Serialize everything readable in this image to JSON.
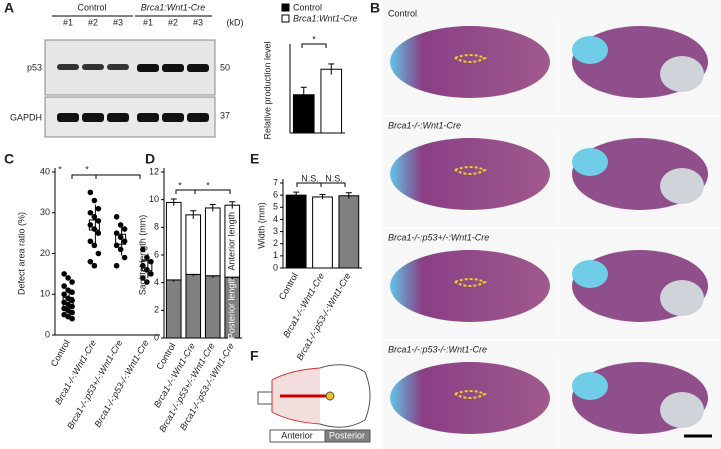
{
  "blot": {
    "panel": "A",
    "groups": [
      "Control",
      "Brca1:Wnt1-Cre"
    ],
    "lanes": [
      "#1",
      "#2",
      "#3",
      "#1",
      "#2",
      "#3"
    ],
    "unit": "(kD)",
    "rows": [
      {
        "label": "p53",
        "marker": "50"
      },
      {
        "label": "GAPDH",
        "marker": "37"
      }
    ]
  },
  "photos": {
    "panel": "B",
    "rows": [
      "Control",
      "Brca1-/-:Wnt1-Cre",
      "Brca1-/-:p53+/-:Wnt1-Cre",
      "Brca1-/-:p53-/-:Wnt1-Cre"
    ]
  },
  "diagram": {
    "panel": "F",
    "labels": [
      "Anterior",
      "Posterior"
    ]
  },
  "chart_data": [
    {
      "type": "bar",
      "panel": "A",
      "ylabel": "Relative production level",
      "ylim": [
        0,
        0.8
      ],
      "series": [
        {
          "name": "Control",
          "color": "#000000",
          "values": [
            0.36
          ],
          "errors": [
            0.07
          ]
        },
        {
          "name": "Brca1:Wnt1-Cre",
          "color": "#ffffff",
          "values": [
            0.6
          ],
          "errors": [
            0.05
          ]
        }
      ],
      "annotations": [
        "*"
      ]
    },
    {
      "type": "scatter",
      "panel": "C",
      "ylabel": "Defect area ratio (%)",
      "ylim": [
        0,
        40
      ],
      "yticks": [
        0,
        10,
        20,
        30,
        40
      ],
      "categories": [
        "Control",
        "Brca1-/-:Wnt1-Cre",
        "Brca1-/-:p53+/-:Wnt1-Cre",
        "Brca1-/-:p53-/-:Wnt1-Cre"
      ],
      "groups": [
        {
          "points": [
            15,
            14,
            13,
            12,
            11,
            10.5,
            10,
            9,
            8.5,
            8,
            7.5,
            7,
            6.5,
            6,
            5.5,
            5,
            4.5,
            4
          ],
          "mean": 8,
          "error": 3
        },
        {
          "points": [
            35,
            33,
            31,
            30,
            29,
            28,
            27,
            26,
            25,
            23,
            22,
            20,
            18,
            17
          ],
          "mean": 27,
          "error": 5
        },
        {
          "points": [
            29,
            27,
            26,
            25,
            24,
            23,
            22,
            21,
            19,
            17
          ],
          "mean": 23.5,
          "error": 4
        },
        {
          "points": [
            21,
            19,
            18,
            17,
            16,
            15,
            14,
            13
          ],
          "mean": 17,
          "error": 3
        }
      ],
      "annotations": [
        "*",
        "*"
      ]
    },
    {
      "type": "stacked-bar",
      "panel": "D",
      "ylabel": "Sagittal length (mm)",
      "ylim": [
        0,
        12
      ],
      "yticks": [
        0,
        2,
        4,
        6,
        8,
        10,
        12
      ],
      "categories": [
        "Control",
        "Brca1-/-:Wnt1-Cre",
        "Brca1-/-:p53+/-:Wnt1-Cre",
        "Brca1-/-:p53-/-:Wnt1-Cre"
      ],
      "series": [
        {
          "name": "Posterior length",
          "color": "#808080",
          "values": [
            4.2,
            4.6,
            4.5,
            4.4
          ],
          "errors": [
            0.15,
            0.15,
            0.15,
            0.15
          ]
        },
        {
          "name": "Anterior length",
          "color": "#ffffff",
          "values": [
            5.6,
            4.3,
            4.9,
            5.2
          ],
          "errors": [
            0.25,
            0.3,
            0.25,
            0.25
          ]
        }
      ],
      "annotations": [
        "*",
        "*"
      ]
    },
    {
      "type": "bar",
      "panel": "E",
      "ylabel": "Width (mm)",
      "ylim": [
        0,
        7
      ],
      "yticks": [
        0,
        1,
        2,
        3,
        4,
        5,
        6,
        7
      ],
      "categories": [
        "Control",
        "Brca1-/-:Wnt1-Cre",
        "Brca1-/-:p53-/-:Wnt1-Cre"
      ],
      "values": [
        6.0,
        5.85,
        5.95
      ],
      "errors": [
        0.25,
        0.2,
        0.25
      ],
      "colors": [
        "#000000",
        "#ffffff",
        "#808080"
      ],
      "annotations": [
        "N.S.",
        "N.S."
      ]
    }
  ]
}
